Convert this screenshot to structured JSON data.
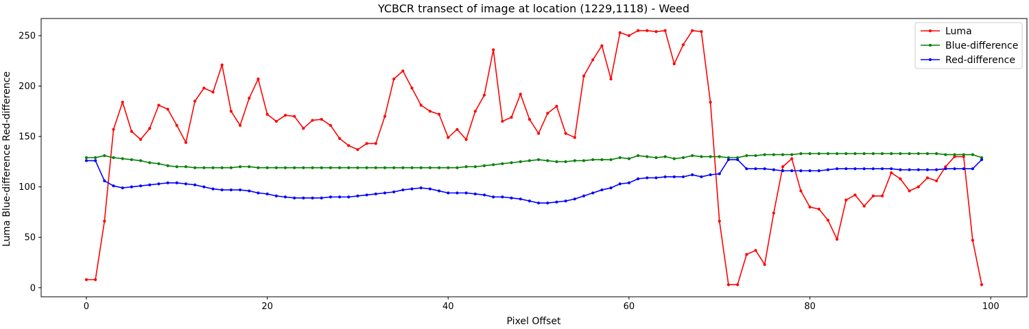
{
  "chart_data": {
    "type": "line",
    "title": "YCBCR transect of image at location (1229,1118) - Weed",
    "xlabel": "Pixel Offset",
    "ylabel": "Luma Blue-difference Red-difference",
    "ylabel_color": "#0000ff",
    "xlim": [
      -5,
      104
    ],
    "ylim": [
      -9,
      267
    ],
    "xticks": [
      0,
      20,
      40,
      60,
      80,
      100
    ],
    "yticks": [
      0,
      50,
      100,
      150,
      200,
      250
    ],
    "grid": false,
    "legend_position": "top-right",
    "x": [
      0,
      1,
      2,
      3,
      4,
      5,
      6,
      7,
      8,
      9,
      10,
      11,
      12,
      13,
      14,
      15,
      16,
      17,
      18,
      19,
      20,
      21,
      22,
      23,
      24,
      25,
      26,
      27,
      28,
      29,
      30,
      31,
      32,
      33,
      34,
      35,
      36,
      37,
      38,
      39,
      40,
      41,
      42,
      43,
      44,
      45,
      46,
      47,
      48,
      49,
      50,
      51,
      52,
      53,
      54,
      55,
      56,
      57,
      58,
      59,
      60,
      61,
      62,
      63,
      64,
      65,
      66,
      67,
      68,
      69,
      70,
      71,
      72,
      73,
      74,
      75,
      76,
      77,
      78,
      79,
      80,
      81,
      82,
      83,
      84,
      85,
      86,
      87,
      88,
      89,
      90,
      91,
      92,
      93,
      94,
      95,
      96,
      97,
      98,
      99
    ],
    "series": [
      {
        "name": "Luma",
        "color": "#ff0000",
        "values": [
          8,
          8,
          66,
          157,
          184,
          155,
          147,
          158,
          181,
          177,
          161,
          144,
          185,
          198,
          194,
          221,
          175,
          161,
          188,
          207,
          172,
          165,
          171,
          170,
          158,
          166,
          167,
          161,
          148,
          141,
          137,
          143,
          143,
          170,
          207,
          215,
          198,
          181,
          175,
          172,
          149,
          157,
          147,
          175,
          191,
          236,
          165,
          169,
          192,
          167,
          153,
          173,
          180,
          153,
          149,
          210,
          226,
          240,
          207,
          253,
          250,
          255,
          255,
          254,
          255,
          222,
          241,
          255,
          254,
          184,
          66,
          3,
          3,
          33,
          37,
          23,
          74,
          120,
          128,
          96,
          80,
          78,
          67,
          48,
          87,
          92,
          81,
          91,
          91,
          114,
          108,
          96,
          100,
          109,
          106,
          120,
          130,
          130,
          47,
          3
        ]
      },
      {
        "name": "Blue-difference",
        "color": "#008000",
        "values": [
          129,
          129,
          131,
          129,
          128,
          127,
          126,
          124,
          123,
          121,
          120,
          120,
          119,
          119,
          119,
          119,
          119,
          120,
          120,
          119,
          119,
          119,
          119,
          119,
          119,
          119,
          119,
          119,
          119,
          119,
          119,
          119,
          119,
          119,
          119,
          119,
          119,
          119,
          119,
          119,
          119,
          119,
          120,
          120,
          121,
          122,
          123,
          124,
          125,
          126,
          127,
          126,
          125,
          125,
          126,
          126,
          127,
          127,
          127,
          129,
          128,
          131,
          130,
          129,
          130,
          128,
          129,
          131,
          130,
          130,
          130,
          129,
          129,
          131,
          131,
          132,
          132,
          132,
          132,
          133,
          133,
          133,
          133,
          133,
          133,
          133,
          133,
          133,
          133,
          133,
          133,
          133,
          133,
          133,
          133,
          132,
          132,
          132,
          132,
          129
        ]
      },
      {
        "name": "Red-difference",
        "color": "#0000ff",
        "values": [
          126,
          126,
          106,
          101,
          99,
          100,
          101,
          102,
          103,
          104,
          104,
          103,
          102,
          100,
          98,
          97,
          97,
          97,
          96,
          94,
          93,
          91,
          90,
          89,
          89,
          89,
          89,
          90,
          90,
          90,
          91,
          92,
          93,
          94,
          95,
          97,
          98,
          99,
          98,
          96,
          94,
          94,
          94,
          93,
          92,
          90,
          90,
          89,
          88,
          86,
          84,
          84,
          85,
          86,
          88,
          91,
          94,
          97,
          99,
          103,
          104,
          108,
          109,
          109,
          110,
          110,
          110,
          112,
          110,
          112,
          113,
          127,
          127,
          118,
          118,
          118,
          117,
          116,
          116,
          116,
          116,
          116,
          117,
          118,
          118,
          118,
          118,
          118,
          118,
          118,
          117,
          117,
          117,
          117,
          117,
          118,
          118,
          118,
          118,
          127
        ]
      }
    ]
  }
}
